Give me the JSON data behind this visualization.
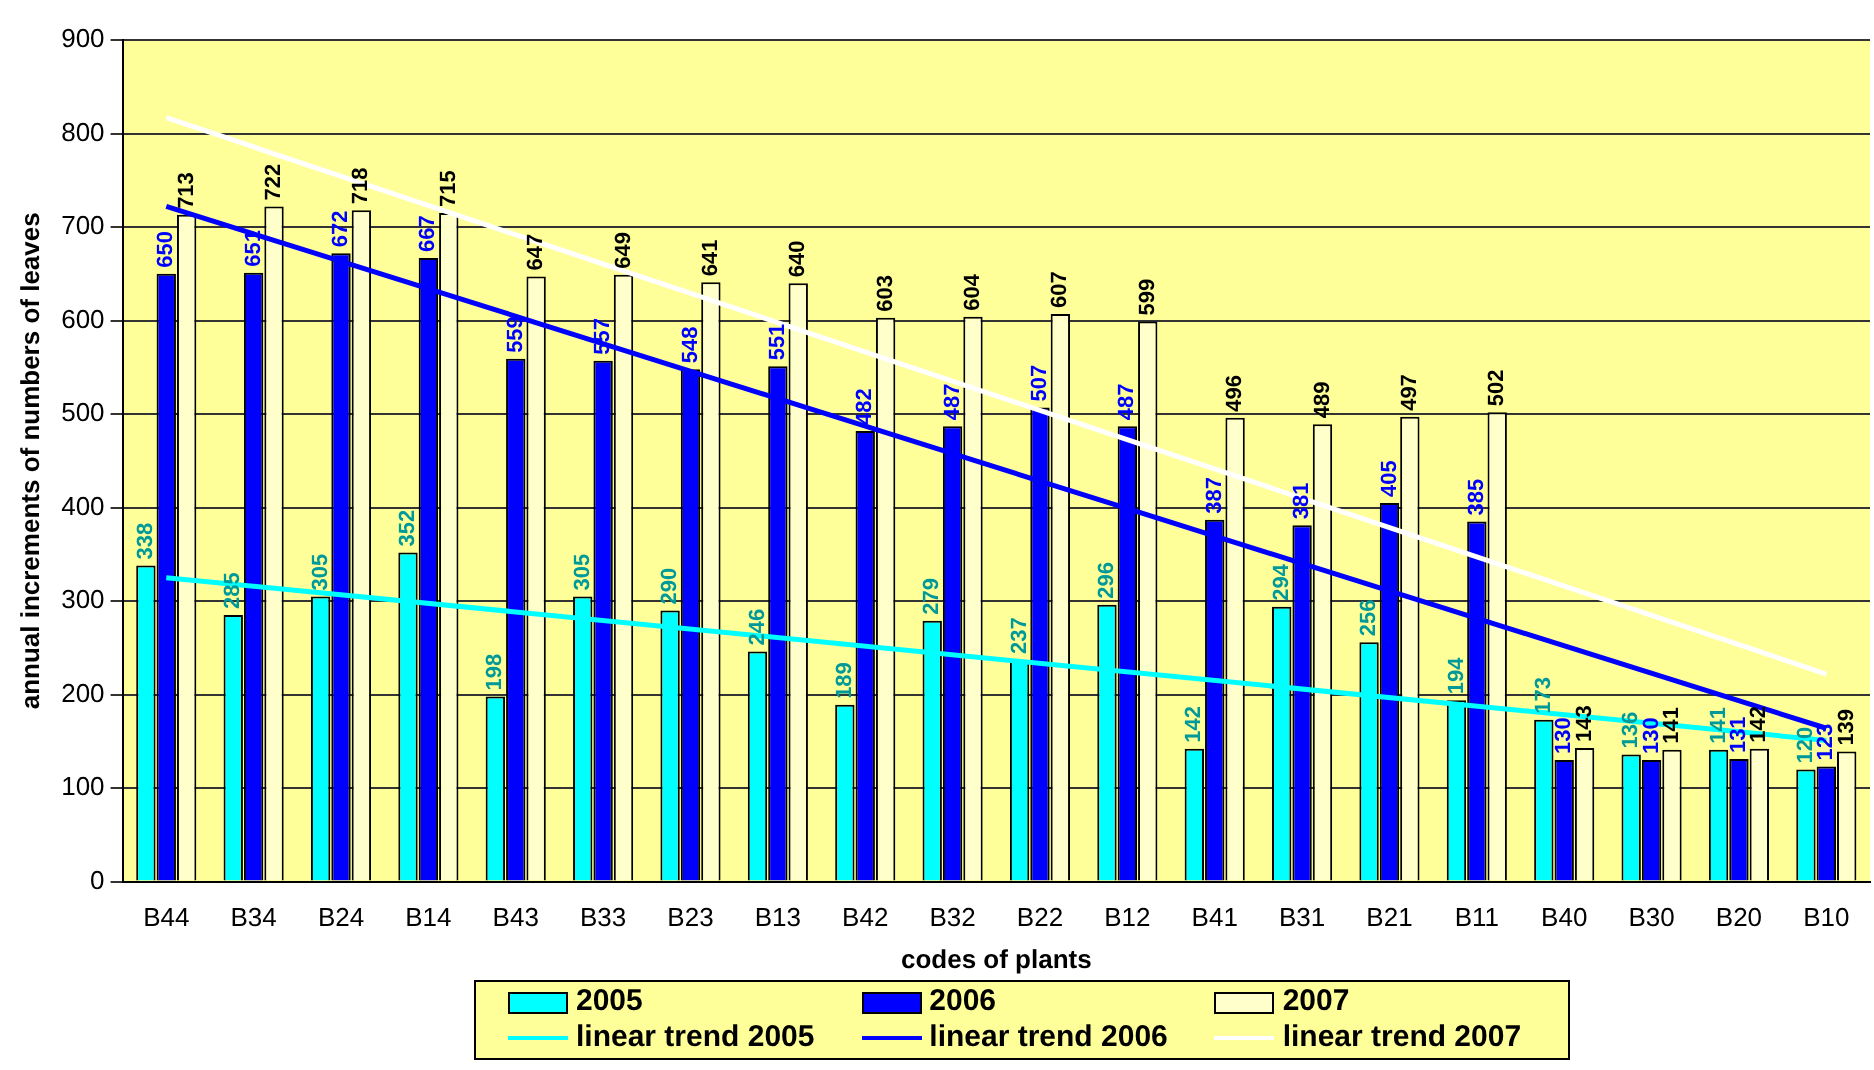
{
  "chart_data": {
    "type": "bar",
    "xlabel": "codes of plants",
    "ylabel": "annual increments of numbers of leaves",
    "categories": [
      "B44",
      "B34",
      "B24",
      "B14",
      "B43",
      "B33",
      "B23",
      "B13",
      "B42",
      "B32",
      "B22",
      "B12",
      "B41",
      "B31",
      "B21",
      "B11",
      "B40",
      "B30",
      "B20",
      "B10"
    ],
    "series": [
      {
        "name": "2005",
        "color": "#00ffff",
        "values": [
          338,
          285,
          305,
          352,
          198,
          305,
          290,
          246,
          189,
          279,
          237,
          296,
          142,
          294,
          256,
          194,
          173,
          136,
          141,
          120
        ],
        "value_labels": [
          "338",
          "285",
          "305",
          "352",
          "198",
          "305",
          "290",
          "246",
          "189",
          "279",
          "237",
          "296",
          "142",
          "294",
          "256",
          "194",
          "173",
          "136",
          "141",
          "120"
        ]
      },
      {
        "name": "2006",
        "color": "#0000ff",
        "values": [
          650,
          651,
          672,
          667,
          559,
          557,
          548,
          551,
          482,
          487,
          507,
          487,
          387,
          381,
          405,
          385,
          130,
          130,
          131,
          123
        ],
        "value_labels": [
          "650",
          "651",
          "672",
          "667",
          "559",
          "557",
          "548",
          "551",
          "482",
          "487",
          "507",
          "487",
          "387",
          "381",
          "405",
          "385",
          "130",
          "130",
          "131",
          "123"
        ]
      },
      {
        "name": "2007",
        "color": "#ffffcc",
        "values": [
          713,
          722,
          718,
          715,
          647,
          649,
          641,
          640,
          603,
          604,
          607,
          599,
          496,
          489,
          497,
          502,
          143,
          141,
          142,
          139
        ],
        "value_labels": [
          "713",
          "722",
          "718",
          "715",
          "647",
          "649",
          "641",
          "640",
          "603",
          "604",
          "607",
          "599",
          "496",
          "489",
          "497",
          "502",
          "143",
          "141",
          "142",
          "139"
        ]
      },
      {
        "name": "linear trend 2005",
        "type": "line",
        "color": "#00ffff",
        "x": [
          "B44",
          "B10"
        ],
        "values": [
          325,
          151
        ]
      },
      {
        "name": "linear trend 2006",
        "type": "line",
        "color": "#0000ff",
        "x": [
          "B44",
          "B10"
        ],
        "values": [
          722,
          164
        ]
      },
      {
        "name": "linear trend 2007",
        "type": "line",
        "color": "#ffffff",
        "x": [
          "B44",
          "B10"
        ],
        "values": [
          817,
          222
        ]
      }
    ],
    "ylim": [
      0,
      900
    ],
    "yticks": [
      0,
      100,
      200,
      300,
      400,
      500,
      600,
      700,
      800,
      900
    ],
    "grid": "y",
    "legend": "bottom",
    "marker": "none"
  }
}
